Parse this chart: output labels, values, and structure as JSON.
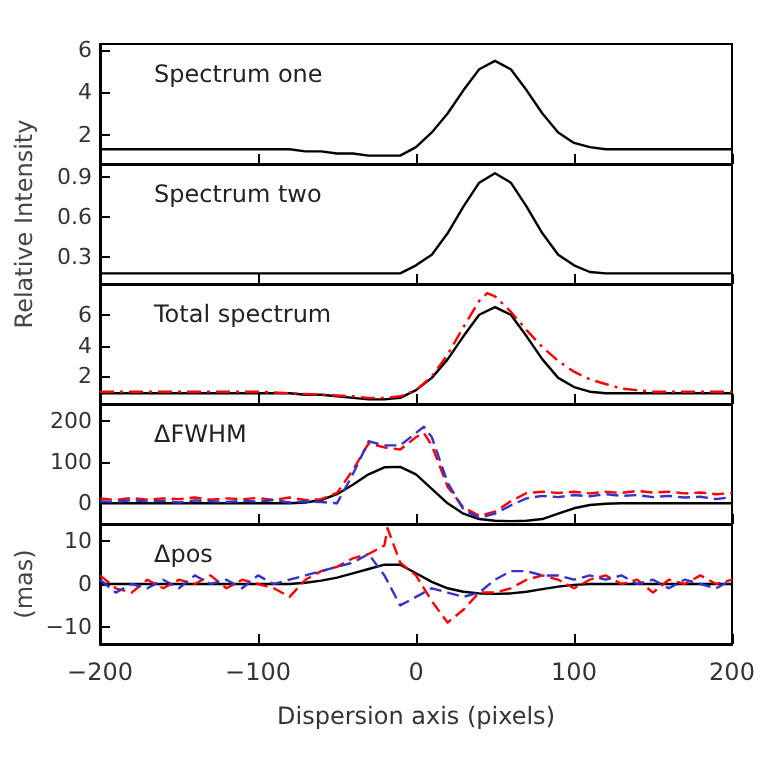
{
  "chart_data": [
    {
      "type": "line",
      "title": "Spectrum one",
      "xlim": [
        -200,
        200
      ],
      "xticks": [
        -200,
        -100,
        0,
        100,
        200
      ],
      "ylim": [
        0.6,
        6.3
      ],
      "yticks": [
        2,
        4,
        6
      ],
      "tick_labels": "y",
      "marker": "none",
      "x": [
        -200,
        -190,
        -180,
        -170,
        -160,
        -150,
        -140,
        -130,
        -120,
        -110,
        -100,
        -90,
        -80,
        -70,
        -60,
        -50,
        -40,
        -30,
        -20,
        -10,
        0,
        10,
        20,
        30,
        40,
        50,
        60,
        70,
        80,
        90,
        100,
        110,
        120,
        130,
        140,
        150,
        160,
        170,
        180,
        190,
        200
      ],
      "series": [
        {
          "color": "#000000",
          "line_style": "solid",
          "values": [
            1.3,
            1.3,
            1.3,
            1.3,
            1.3,
            1.3,
            1.3,
            1.3,
            1.3,
            1.3,
            1.3,
            1.3,
            1.3,
            1.2,
            1.2,
            1.1,
            1.1,
            1.0,
            1.0,
            1.0,
            1.4,
            2.1,
            3.0,
            4.1,
            5.1,
            5.5,
            5.1,
            4.1,
            3.0,
            2.1,
            1.6,
            1.4,
            1.3,
            1.3,
            1.3,
            1.3,
            1.3,
            1.3,
            1.3,
            1.3,
            1.3
          ]
        }
      ]
    },
    {
      "type": "line",
      "title": "Spectrum two",
      "ylabel": "Relative Intensity",
      "xlim": [
        -200,
        200
      ],
      "xticks": [
        -200,
        -100,
        0,
        100,
        200
      ],
      "ylim": [
        0.1,
        1.0
      ],
      "yticks": [
        0.3,
        0.6,
        0.9
      ],
      "tick_labels": "y",
      "marker": "none",
      "x": [
        -200,
        -190,
        -180,
        -170,
        -160,
        -150,
        -140,
        -130,
        -120,
        -110,
        -100,
        -90,
        -80,
        -70,
        -60,
        -50,
        -40,
        -30,
        -20,
        -10,
        0,
        10,
        20,
        30,
        40,
        50,
        60,
        70,
        80,
        90,
        100,
        110,
        120,
        130,
        140,
        150,
        160,
        170,
        180,
        190,
        200
      ],
      "series": [
        {
          "color": "#000000",
          "line_style": "solid",
          "values": [
            0.18,
            0.18,
            0.18,
            0.18,
            0.18,
            0.18,
            0.18,
            0.18,
            0.18,
            0.18,
            0.18,
            0.18,
            0.18,
            0.18,
            0.18,
            0.18,
            0.18,
            0.18,
            0.18,
            0.18,
            0.24,
            0.32,
            0.48,
            0.68,
            0.86,
            0.93,
            0.86,
            0.68,
            0.48,
            0.32,
            0.24,
            0.19,
            0.18,
            0.18,
            0.18,
            0.18,
            0.18,
            0.18,
            0.18,
            0.18,
            0.18
          ]
        }
      ]
    },
    {
      "type": "line",
      "title": "Total spectrum",
      "xlim": [
        -200,
        200
      ],
      "xticks": [
        -200,
        -100,
        0,
        100,
        200
      ],
      "ylim": [
        0.2,
        8
      ],
      "yticks": [
        2,
        4,
        6
      ],
      "tick_labels": "y",
      "marker": "none",
      "x": [
        -200,
        -190,
        -180,
        -170,
        -160,
        -150,
        -140,
        -130,
        -120,
        -110,
        -100,
        -90,
        -80,
        -70,
        -60,
        -50,
        -40,
        -30,
        -20,
        -10,
        0,
        10,
        20,
        30,
        40,
        50,
        60,
        70,
        80,
        90,
        100,
        110,
        120,
        130,
        140,
        150,
        160,
        170,
        180,
        190,
        200
      ],
      "series": [
        {
          "color": "#000000",
          "line_style": "solid",
          "values": [
            0.9,
            0.9,
            0.9,
            0.9,
            0.9,
            0.9,
            0.9,
            0.9,
            0.9,
            0.9,
            0.9,
            0.9,
            0.9,
            0.8,
            0.8,
            0.7,
            0.6,
            0.5,
            0.5,
            0.6,
            1.1,
            1.9,
            3.1,
            4.6,
            6.0,
            6.5,
            6.0,
            4.6,
            3.1,
            1.9,
            1.3,
            1.0,
            0.9,
            0.9,
            0.9,
            0.9,
            0.9,
            0.9,
            0.9,
            0.9,
            0.9
          ]
        },
        {
          "color": "#ff0000",
          "line_style": "dashdot",
          "x": [
            -200,
            -180,
            -160,
            -140,
            -120,
            -100,
            -80,
            -60,
            -40,
            -30,
            -20,
            -10,
            0,
            10,
            20,
            30,
            40,
            45,
            50,
            60,
            70,
            80,
            90,
            100,
            110,
            120,
            130,
            140,
            150,
            160,
            180,
            200
          ],
          "values": [
            1.0,
            1.0,
            1.0,
            1.0,
            1.0,
            1.0,
            0.9,
            0.8,
            0.7,
            0.6,
            0.6,
            0.7,
            1.1,
            2.0,
            3.4,
            5.2,
            6.9,
            7.4,
            7.2,
            6.2,
            5.0,
            3.9,
            3.0,
            2.3,
            1.8,
            1.5,
            1.2,
            1.1,
            1.0,
            1.0,
            1.0,
            1.0
          ]
        }
      ]
    },
    {
      "type": "line",
      "title": "ΔFWHM",
      "xlim": [
        -200,
        200
      ],
      "xticks": [
        -200,
        -100,
        0,
        100,
        200
      ],
      "ylim": [
        -50,
        240
      ],
      "yticks": [
        0,
        100,
        200
      ],
      "tick_labels": "y",
      "marker": "none",
      "x": [
        -200,
        -190,
        -180,
        -170,
        -160,
        -150,
        -140,
        -130,
        -120,
        -110,
        -100,
        -90,
        -80,
        -70,
        -60,
        -50,
        -40,
        -30,
        -20,
        -10,
        0,
        10,
        20,
        30,
        40,
        50,
        60,
        70,
        80,
        90,
        100,
        110,
        120,
        130,
        140,
        150,
        160,
        170,
        180,
        190,
        200
      ],
      "series": [
        {
          "color": "#000000",
          "line_style": "solid",
          "values": [
            0,
            0,
            0,
            0,
            0,
            0,
            0,
            0,
            0,
            0,
            0,
            0,
            0,
            2,
            8,
            22,
            45,
            70,
            87,
            88,
            70,
            35,
            0,
            -25,
            -38,
            -42,
            -43,
            -42,
            -38,
            -25,
            -12,
            -4,
            -1,
            0,
            0,
            0,
            0,
            0,
            0,
            0,
            0
          ]
        },
        {
          "color": "#ff0000",
          "line_style": "dashed",
          "x": [
            -200,
            -190,
            -180,
            -170,
            -160,
            -150,
            -140,
            -130,
            -120,
            -110,
            -100,
            -90,
            -80,
            -70,
            -60,
            -50,
            -40,
            -30,
            -20,
            -10,
            0,
            5,
            10,
            20,
            30,
            40,
            50,
            60,
            70,
            80,
            90,
            100,
            110,
            120,
            130,
            140,
            150,
            160,
            170,
            180,
            190,
            200
          ],
          "values": [
            12,
            8,
            13,
            9,
            12,
            10,
            14,
            9,
            12,
            10,
            13,
            8,
            14,
            8,
            10,
            25,
            80,
            145,
            135,
            130,
            160,
            170,
            140,
            40,
            -10,
            -30,
            -20,
            5,
            25,
            28,
            25,
            28,
            24,
            28,
            25,
            30,
            26,
            28,
            24,
            26,
            22,
            25
          ]
        },
        {
          "color": "#3333cc",
          "line_style": "dashed",
          "x": [
            -200,
            -190,
            -180,
            -170,
            -160,
            -150,
            -140,
            -130,
            -120,
            -110,
            -100,
            -90,
            -80,
            -70,
            -60,
            -50,
            -40,
            -30,
            -20,
            -10,
            0,
            5,
            10,
            20,
            30,
            40,
            50,
            60,
            70,
            80,
            90,
            100,
            110,
            120,
            130,
            140,
            150,
            160,
            170,
            180,
            190,
            200
          ],
          "values": [
            5,
            3,
            8,
            4,
            6,
            2,
            7,
            5,
            3,
            6,
            4,
            8,
            2,
            5,
            3,
            0,
            70,
            150,
            140,
            140,
            170,
            185,
            160,
            50,
            -15,
            -35,
            -25,
            -5,
            12,
            18,
            15,
            20,
            17,
            22,
            18,
            20,
            15,
            18,
            14,
            16,
            10,
            15
          ]
        }
      ]
    },
    {
      "type": "line",
      "title": "Δpos",
      "ylabel": "(mas)",
      "xlabel": "Dispersion axis (pixels)",
      "xlim": [
        -200,
        200
      ],
      "xticks": [
        {
          "value": -200,
          "label": "−200"
        },
        {
          "value": -100,
          "label": "−100"
        },
        0,
        100,
        200
      ],
      "ylim": [
        -14,
        14
      ],
      "yticks": [
        {
          "value": -10,
          "label": "−10"
        },
        0,
        10
      ],
      "marker": "none",
      "x": [
        -200,
        -190,
        -180,
        -170,
        -160,
        -150,
        -140,
        -130,
        -120,
        -110,
        -100,
        -90,
        -80,
        -70,
        -60,
        -50,
        -40,
        -30,
        -20,
        -10,
        0,
        10,
        20,
        30,
        40,
        50,
        60,
        70,
        80,
        90,
        100,
        110,
        120,
        130,
        140,
        150,
        160,
        170,
        180,
        190,
        200
      ],
      "series": [
        {
          "color": "#000000",
          "line_style": "solid",
          "values": [
            0,
            0,
            0,
            0,
            0,
            0,
            0,
            0,
            0,
            0,
            0,
            0,
            0,
            0.3,
            0.8,
            1.5,
            2.5,
            3.5,
            4.5,
            4.5,
            2.5,
            0.5,
            -1,
            -1.8,
            -2.2,
            -2.3,
            -2.2,
            -1.8,
            -1.2,
            -0.6,
            -0.2,
            0,
            0,
            0,
            0,
            0,
            0,
            0,
            0,
            0,
            0
          ]
        },
        {
          "color": "#ff0000",
          "line_style": "dashed",
          "x": [
            -200,
            -190,
            -180,
            -170,
            -160,
            -150,
            -140,
            -130,
            -120,
            -110,
            -100,
            -90,
            -80,
            -70,
            -60,
            -50,
            -40,
            -30,
            -20,
            -18,
            -10,
            0,
            10,
            20,
            30,
            40,
            50,
            60,
            70,
            80,
            90,
            100,
            110,
            120,
            130,
            140,
            150,
            160,
            170,
            180,
            190,
            200
          ],
          "values": [
            2,
            -1,
            -2,
            1,
            -1,
            1,
            0,
            2,
            -1,
            1,
            0,
            -1,
            -3,
            1,
            3,
            4,
            6,
            7,
            9,
            13,
            5,
            2,
            -4,
            -9,
            -6,
            -2,
            -2,
            -1,
            1,
            2,
            1,
            -1,
            1,
            2,
            0,
            1,
            -2,
            1,
            0,
            2,
            0,
            1
          ]
        },
        {
          "color": "#3333cc",
          "line_style": "dashed",
          "values": [
            1,
            -2,
            0,
            -1,
            1,
            -1,
            2,
            0,
            1,
            -1,
            2,
            0,
            1,
            2,
            3,
            4,
            5,
            7,
            2,
            -5,
            -3,
            -1,
            -2,
            -3,
            -2,
            1,
            3,
            3,
            2,
            2,
            1,
            2,
            1,
            2,
            0,
            1,
            -1,
            1,
            0,
            -1,
            1
          ]
        }
      ]
    }
  ]
}
